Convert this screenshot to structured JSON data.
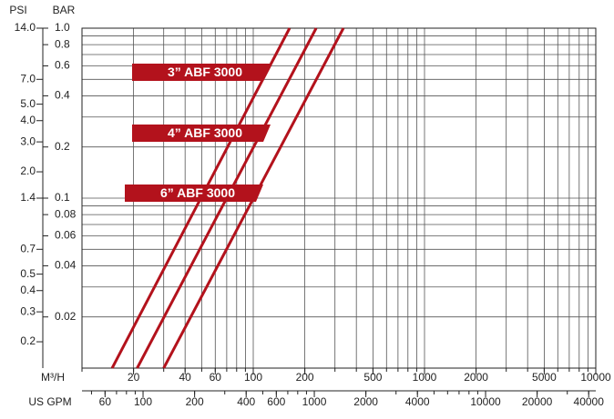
{
  "chart_data": {
    "type": "line",
    "xscale": "log",
    "yscale": "log",
    "y_label": "BAR",
    "y2_label": "PSI",
    "x_label": "M³/H",
    "x2_label": "US GPM",
    "xlim": [
      10,
      10000
    ],
    "x2lim": [
      44,
      44000
    ],
    "ylim": [
      0.01,
      1
    ],
    "y2lim": [
      0.14,
      14
    ],
    "xticks": [
      20,
      40,
      60,
      100,
      200,
      500,
      1000,
      2000,
      5000,
      10000
    ],
    "x2ticks": [
      60,
      100,
      200,
      400,
      600,
      1000,
      2000,
      4000,
      10000,
      20000,
      40000
    ],
    "yticks": [
      {
        "value": 1,
        "label": "1.0"
      },
      0.8,
      0.6,
      0.4,
      0.2,
      0.1,
      0.08,
      0.06,
      0.04,
      0.02
    ],
    "y2ticks": [
      {
        "value": 14,
        "label": "14.0"
      },
      {
        "value": 7,
        "label": "7.0"
      },
      {
        "value": 5,
        "label": "5.0"
      },
      {
        "value": 4,
        "label": "4.0"
      },
      {
        "value": 3,
        "label": "3.0"
      },
      {
        "value": 2,
        "label": "2.0"
      },
      1.4,
      0.7,
      0.5,
      0.4,
      0.3,
      0.2
    ],
    "grid": true,
    "series": [
      {
        "name": "3” ABF 3000",
        "color": "#b3121c",
        "x": [
          15,
          163
        ],
        "values": [
          0.01,
          1
        ]
      },
      {
        "name": "4” ABF 3000",
        "color": "#b3121c",
        "x": [
          21,
          233
        ],
        "values": [
          0.01,
          1
        ]
      },
      {
        "name": "6” ABF 3000",
        "color": "#b3121c",
        "x": [
          30,
          336
        ],
        "values": [
          0.01,
          1
        ]
      }
    ]
  }
}
